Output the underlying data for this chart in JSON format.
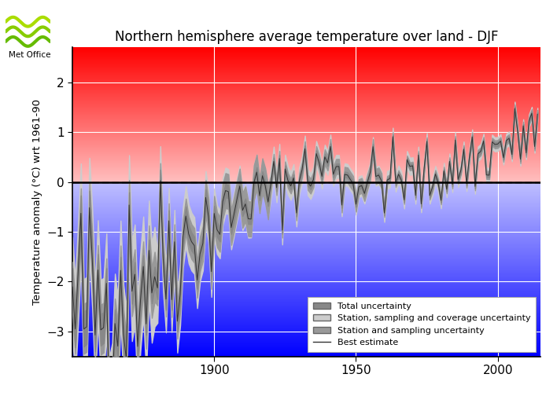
{
  "title": "Northern hemisphere average temperature over land - DJF",
  "ylabel": "Temperature anomaly (°C) wrt 1961-90",
  "xlim": [
    1850,
    2015
  ],
  "ylim": [
    -3.5,
    2.7
  ],
  "yticks": [
    -3,
    -2,
    -1,
    0,
    1,
    2
  ],
  "xticks": [
    1900,
    1950,
    2000
  ],
  "grid_color": "#ccccff",
  "best_estimate_color": "#333333",
  "total_uncertainty_color": "#888888",
  "sampling_coverage_color": "#cccccc",
  "station_sampling_color": "#999999",
  "legend_labels": [
    "Total uncertainty",
    "Station, sampling and coverage uncertainty",
    "Station and sampling uncertainty",
    "Best estimate"
  ],
  "figsize": [
    7.08,
    5.04
  ],
  "dpi": 100
}
